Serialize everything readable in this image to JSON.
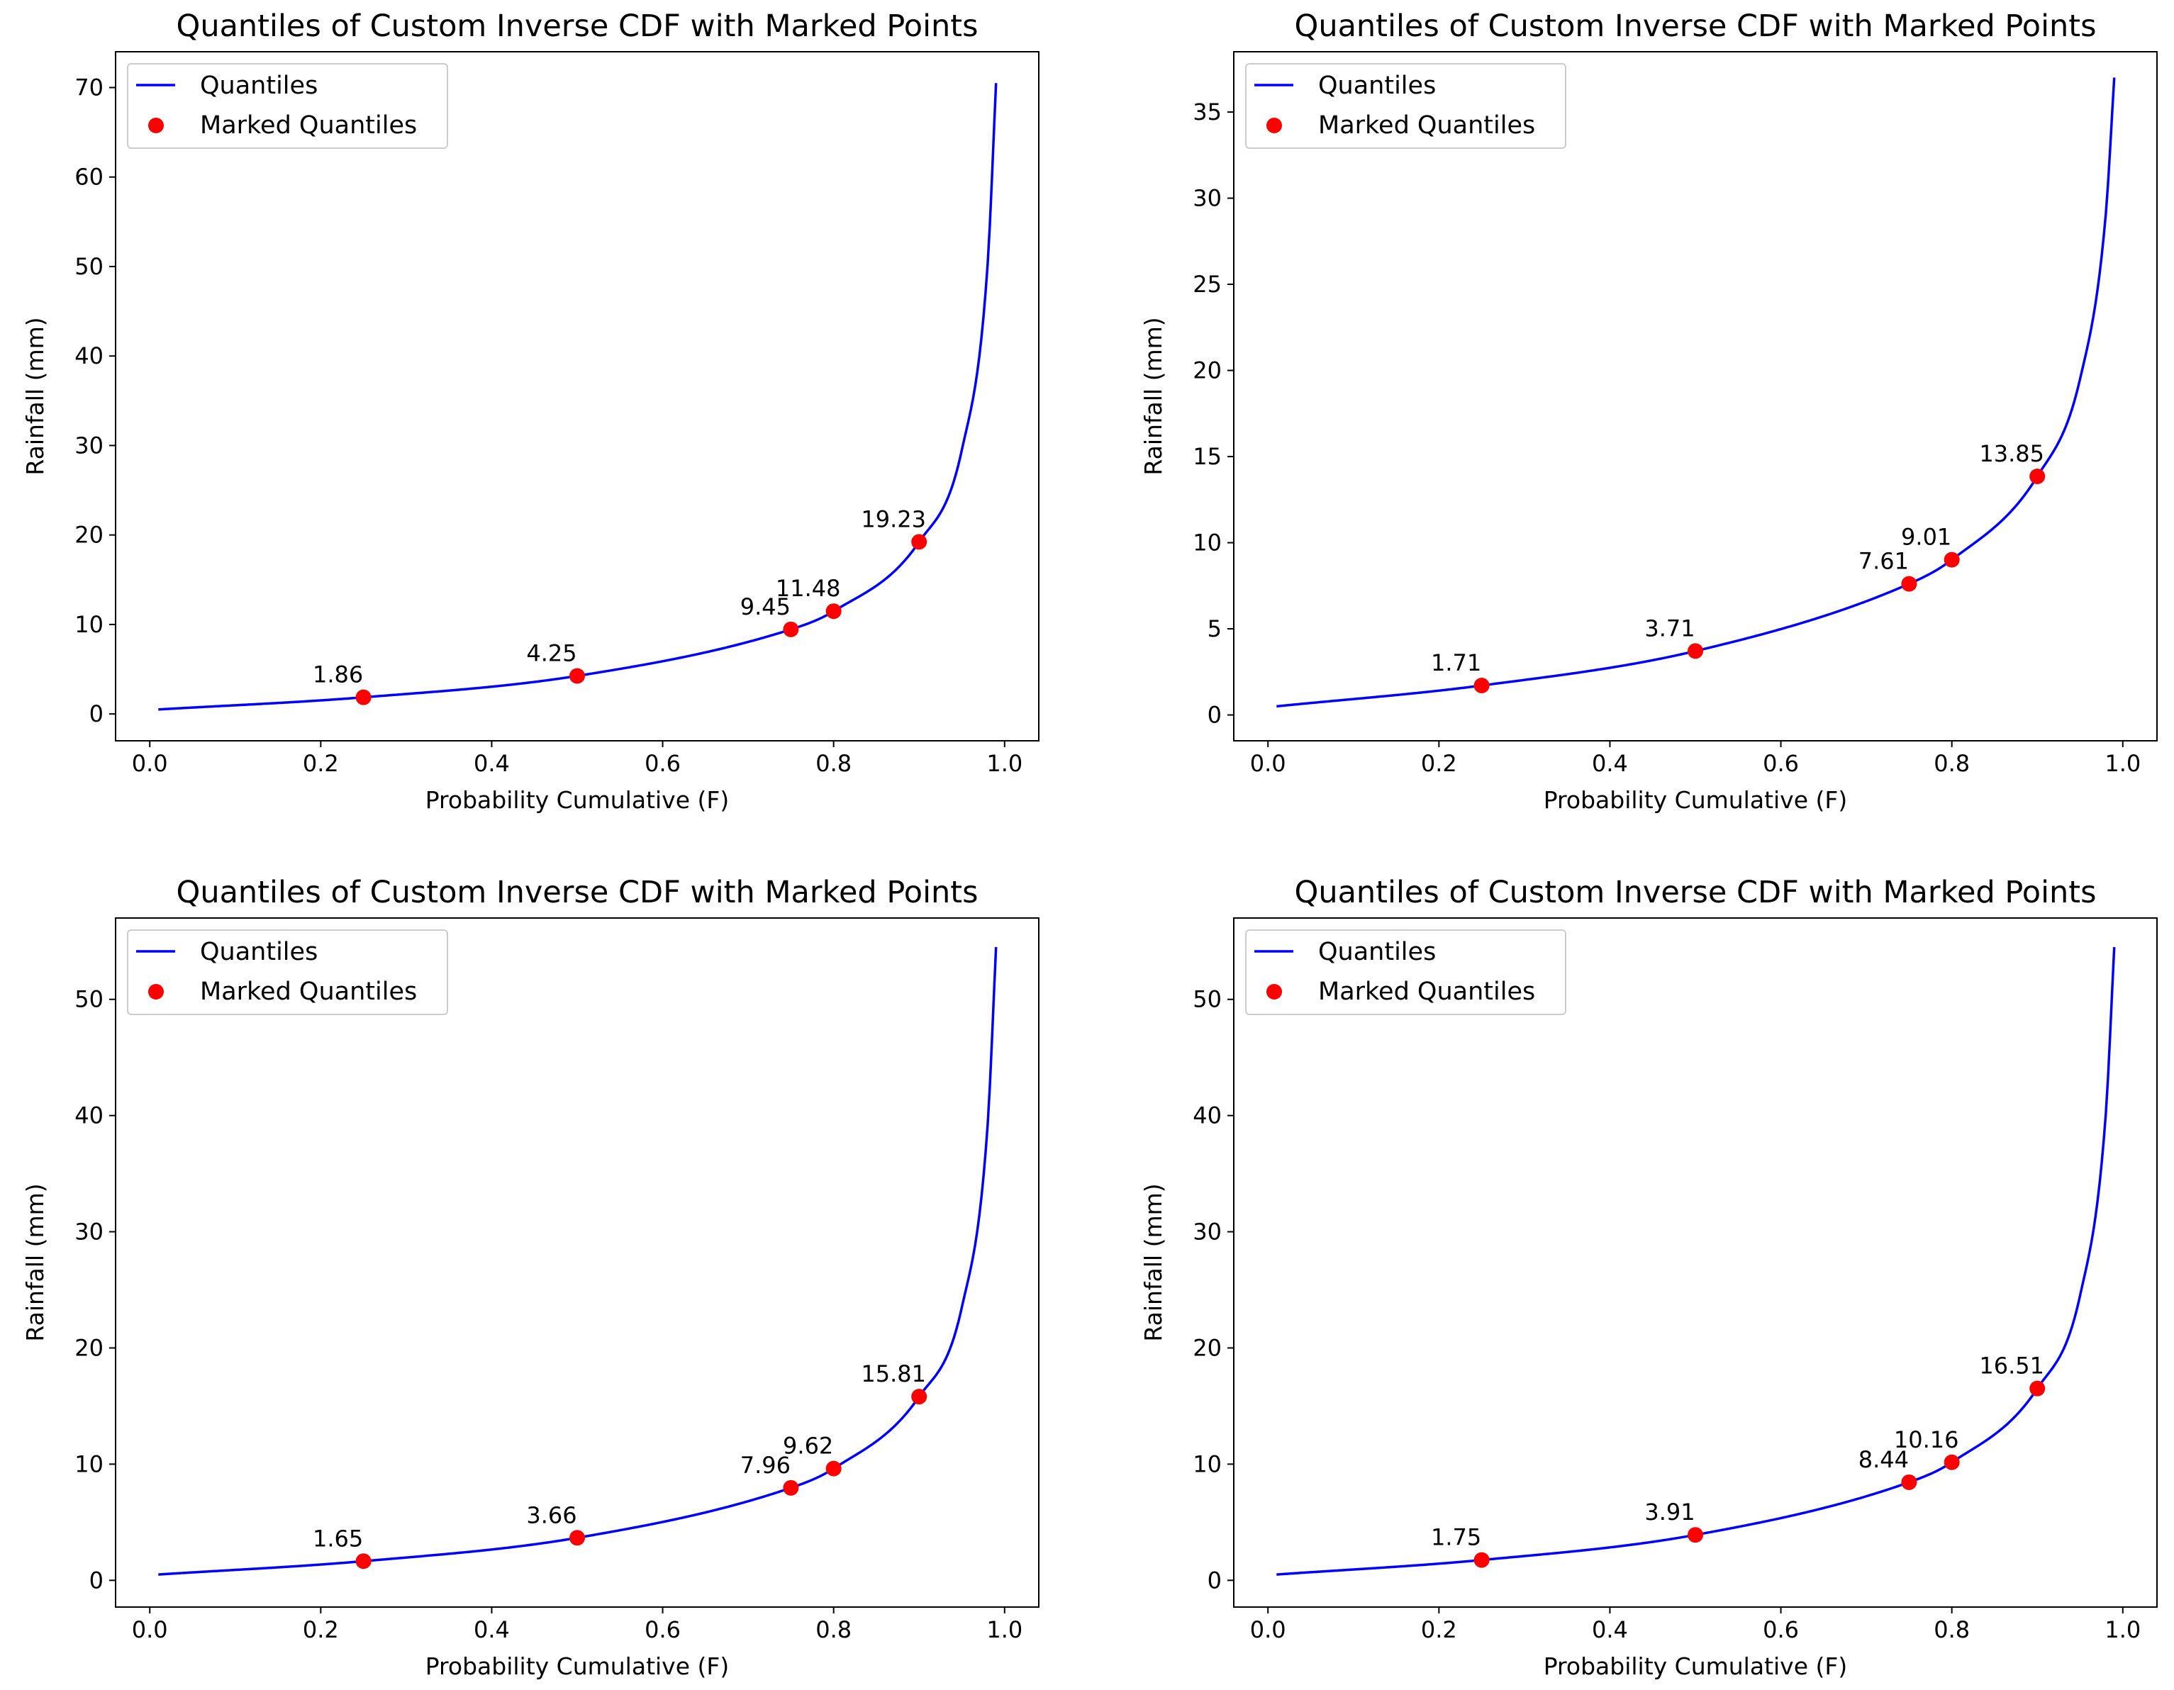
{
  "chart_data": [
    {
      "type": "line",
      "title": "Quantiles of Custom Inverse CDF with Marked Points",
      "xlabel": "Probability Cumulative (F)",
      "ylabel": "Rainfall (mm)",
      "xlim": [
        -0.04,
        1.04
      ],
      "ylim": [
        -3,
        74
      ],
      "xticks": [
        0.0,
        0.2,
        0.4,
        0.6,
        0.8,
        1.0
      ],
      "xtick_labels": [
        "0.0",
        "0.2",
        "0.4",
        "0.6",
        "0.8",
        "1.0"
      ],
      "yticks": [
        0,
        10,
        20,
        30,
        40,
        50,
        60,
        70
      ],
      "ytick_labels": [
        "0",
        "10",
        "20",
        "30",
        "40",
        "50",
        "60",
        "70"
      ],
      "legend": {
        "position": "top-left",
        "entries": [
          "Quantiles",
          "Marked Quantiles"
        ]
      },
      "series": [
        {
          "name": "Quantiles",
          "color": "#0000ff",
          "kind": "line",
          "x": [
            0.01,
            0.25,
            0.5,
            0.75,
            0.8,
            0.9,
            0.95,
            0.98,
            0.99
          ],
          "y": [
            0.5,
            1.86,
            4.25,
            9.45,
            11.48,
            19.23,
            29.5,
            50.0,
            70.5
          ]
        },
        {
          "name": "Marked Quantiles",
          "color": "#ff0000",
          "kind": "scatter",
          "x": [
            0.25,
            0.5,
            0.75,
            0.8,
            0.9
          ],
          "y": [
            1.86,
            4.25,
            9.45,
            11.48,
            19.23
          ],
          "labels": [
            "1.86",
            "4.25",
            "9.45",
            "11.48",
            "19.23"
          ]
        }
      ]
    },
    {
      "type": "line",
      "title": "Quantiles of Custom Inverse CDF with Marked Points",
      "xlabel": "Probability Cumulative (F)",
      "ylabel": "Rainfall (mm)",
      "xlim": [
        -0.04,
        1.04
      ],
      "ylim": [
        -1.5,
        38.5
      ],
      "xticks": [
        0.0,
        0.2,
        0.4,
        0.6,
        0.8,
        1.0
      ],
      "xtick_labels": [
        "0.0",
        "0.2",
        "0.4",
        "0.6",
        "0.8",
        "1.0"
      ],
      "yticks": [
        0,
        5,
        10,
        15,
        20,
        25,
        30,
        35
      ],
      "ytick_labels": [
        "0",
        "5",
        "10",
        "15",
        "20",
        "25",
        "30",
        "35"
      ],
      "legend": {
        "position": "top-left",
        "entries": [
          "Quantiles",
          "Marked Quantiles"
        ]
      },
      "series": [
        {
          "name": "Quantiles",
          "color": "#0000ff",
          "kind": "line",
          "x": [
            0.01,
            0.25,
            0.5,
            0.75,
            0.8,
            0.9,
            0.95,
            0.98,
            0.99
          ],
          "y": [
            0.5,
            1.71,
            3.71,
            7.61,
            9.01,
            13.85,
            19.5,
            29.0,
            37.0
          ]
        },
        {
          "name": "Marked Quantiles",
          "color": "#ff0000",
          "kind": "scatter",
          "x": [
            0.25,
            0.5,
            0.75,
            0.8,
            0.9
          ],
          "y": [
            1.71,
            3.71,
            7.61,
            9.01,
            13.85
          ],
          "labels": [
            "1.71",
            "3.71",
            "7.61",
            "9.01",
            "13.85"
          ]
        }
      ]
    },
    {
      "type": "line",
      "title": "Quantiles of Custom Inverse CDF with Marked Points",
      "xlabel": "Probability Cumulative (F)",
      "ylabel": "Rainfall (mm)",
      "xlim": [
        -0.04,
        1.04
      ],
      "ylim": [
        -2.3,
        57
      ],
      "xticks": [
        0.0,
        0.2,
        0.4,
        0.6,
        0.8,
        1.0
      ],
      "xtick_labels": [
        "0.0",
        "0.2",
        "0.4",
        "0.6",
        "0.8",
        "1.0"
      ],
      "yticks": [
        0,
        10,
        20,
        30,
        40,
        50
      ],
      "ytick_labels": [
        "0",
        "10",
        "20",
        "30",
        "40",
        "50"
      ],
      "legend": {
        "position": "top-left",
        "entries": [
          "Quantiles",
          "Marked Quantiles"
        ]
      },
      "series": [
        {
          "name": "Quantiles",
          "color": "#0000ff",
          "kind": "line",
          "x": [
            0.01,
            0.25,
            0.5,
            0.75,
            0.8,
            0.9,
            0.95,
            0.98,
            0.99
          ],
          "y": [
            0.5,
            1.65,
            3.66,
            7.96,
            9.62,
            15.81,
            23.5,
            39.0,
            54.5
          ]
        },
        {
          "name": "Marked Quantiles",
          "color": "#ff0000",
          "kind": "scatter",
          "x": [
            0.25,
            0.5,
            0.75,
            0.8,
            0.9
          ],
          "y": [
            1.65,
            3.66,
            7.96,
            9.62,
            15.81
          ],
          "labels": [
            "1.65",
            "3.66",
            "7.96",
            "9.62",
            "15.81"
          ]
        }
      ]
    },
    {
      "type": "line",
      "title": "Quantiles of Custom Inverse CDF with Marked Points",
      "xlabel": "Probability Cumulative (F)",
      "ylabel": "Rainfall (mm)",
      "xlim": [
        -0.04,
        1.04
      ],
      "ylim": [
        -2.3,
        57
      ],
      "xticks": [
        0.0,
        0.2,
        0.4,
        0.6,
        0.8,
        1.0
      ],
      "xtick_labels": [
        "0.0",
        "0.2",
        "0.4",
        "0.6",
        "0.8",
        "1.0"
      ],
      "yticks": [
        0,
        10,
        20,
        30,
        40,
        50
      ],
      "ytick_labels": [
        "0",
        "10",
        "20",
        "30",
        "40",
        "50"
      ],
      "legend": {
        "position": "top-left",
        "entries": [
          "Quantiles",
          "Marked Quantiles"
        ]
      },
      "series": [
        {
          "name": "Quantiles",
          "color": "#0000ff",
          "kind": "line",
          "x": [
            0.01,
            0.25,
            0.5,
            0.75,
            0.8,
            0.9,
            0.95,
            0.98,
            0.99
          ],
          "y": [
            0.5,
            1.75,
            3.91,
            8.44,
            10.16,
            16.51,
            24.5,
            40.0,
            54.5
          ]
        },
        {
          "name": "Marked Quantiles",
          "color": "#ff0000",
          "kind": "scatter",
          "x": [
            0.25,
            0.5,
            0.75,
            0.8,
            0.9
          ],
          "y": [
            1.75,
            3.91,
            8.44,
            10.16,
            16.51
          ],
          "labels": [
            "1.75",
            "3.91",
            "8.44",
            "10.16",
            "16.51"
          ]
        }
      ]
    }
  ]
}
